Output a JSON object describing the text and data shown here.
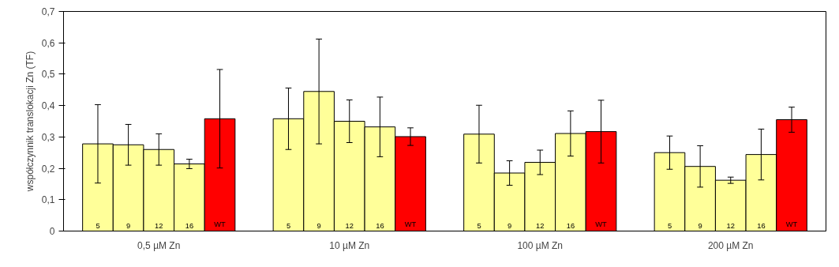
{
  "chart_data": {
    "type": "bar",
    "ylabel": "współczynnik translokacji Zn (TF)",
    "categories": [
      "0,5 µM Zn",
      "10 µM Zn",
      "100 µM Zn",
      "200 µM Zn"
    ],
    "series": [
      {
        "name": "5",
        "color": "#ffff99",
        "values": [
          0.278,
          0.358,
          0.309,
          0.25
        ],
        "errors": [
          0.125,
          0.098,
          0.092,
          0.053
        ]
      },
      {
        "name": "9",
        "color": "#ffff99",
        "values": [
          0.275,
          0.445,
          0.185,
          0.206
        ],
        "errors": [
          0.065,
          0.167,
          0.039,
          0.066
        ]
      },
      {
        "name": "12",
        "color": "#ffff99",
        "values": [
          0.26,
          0.35,
          0.219,
          0.162
        ],
        "errors": [
          0.05,
          0.068,
          0.039,
          0.01
        ]
      },
      {
        "name": "16",
        "color": "#ffff99",
        "values": [
          0.214,
          0.332,
          0.311,
          0.244
        ],
        "errors": [
          0.015,
          0.095,
          0.072,
          0.081
        ]
      },
      {
        "name": "WT",
        "color": "#ff0000",
        "values": [
          0.358,
          0.301,
          0.317,
          0.355
        ],
        "errors": [
          0.157,
          0.028,
          0.1,
          0.04
        ]
      }
    ],
    "ylim": [
      0,
      0.7
    ],
    "yticks": [
      0,
      {
        "value": 0.1,
        "label": "0,1"
      },
      {
        "value": 0.2,
        "label": "0,2"
      },
      {
        "value": 0.3,
        "label": "0,3"
      },
      {
        "value": 0.4,
        "label": "0,4"
      },
      {
        "value": 0.5,
        "label": "0,5"
      },
      {
        "value": 0.6,
        "label": "0,6"
      },
      {
        "value": 0.7,
        "label": "0,7"
      }
    ],
    "grid": false
  }
}
